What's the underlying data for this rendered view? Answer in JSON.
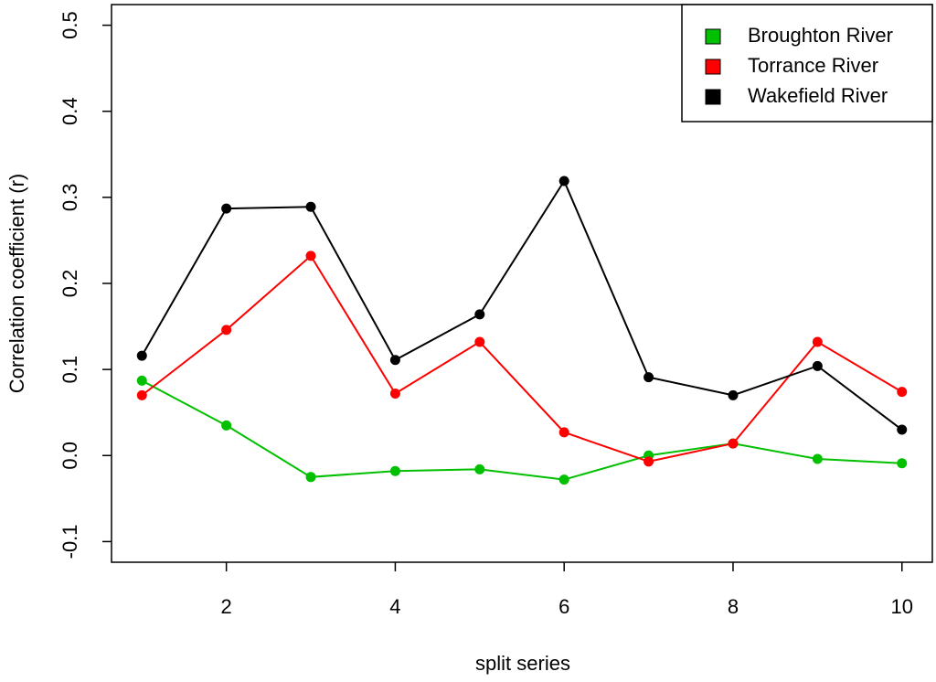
{
  "chart_data": {
    "type": "line",
    "x_label": "split series",
    "y_label": "Correlation coefficient (r)",
    "x": [
      1,
      2,
      3,
      4,
      5,
      6,
      7,
      8,
      9,
      10
    ],
    "series": [
      {
        "name": "Broughton River",
        "color": "#00c000",
        "values": [
          0.087,
          0.035,
          -0.025,
          -0.018,
          -0.016,
          -0.028,
          0.0,
          0.014,
          -0.004,
          -0.009
        ]
      },
      {
        "name": "Torrance River",
        "color": "#ff0000",
        "values": [
          0.07,
          0.146,
          0.232,
          0.072,
          0.132,
          0.027,
          -0.007,
          0.014,
          0.132,
          0.074
        ]
      },
      {
        "name": "Wakefield River",
        "color": "#000000",
        "values": [
          0.116,
          0.287,
          0.289,
          0.111,
          0.164,
          0.319,
          0.091,
          0.07,
          0.104,
          0.03
        ]
      }
    ],
    "xlim": [
      0.64,
      10.36
    ],
    "ylim": [
      -0.124,
      0.524
    ],
    "xticks": [
      2,
      4,
      6,
      8,
      10
    ],
    "yticks": [
      -0.1,
      {
        "value": 0,
        "label": "0.0"
      },
      0.1,
      0.2,
      0.3,
      0.4,
      0.5
    ],
    "grid": false,
    "legend": "top-right"
  }
}
